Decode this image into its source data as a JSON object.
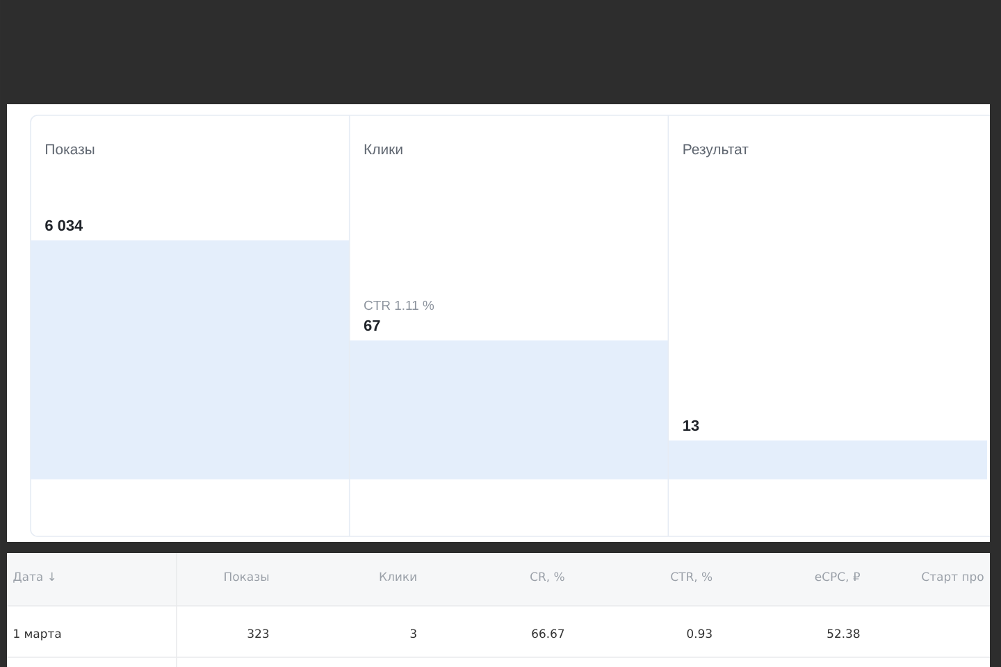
{
  "chart_data": [
    {
      "type": "other",
      "categories": [
        "Показы",
        "Клики",
        "Результат"
      ],
      "values": [
        6034,
        67,
        13
      ],
      "value_labels": [
        "6 034",
        "67",
        "13"
      ],
      "color": "#e4eefb",
      "annotations": [
        "CTR 1.11 %"
      ]
    },
    {
      "type": "other",
      "categories": [
        "Дата ↓",
        "Показы",
        "Клики",
        "CR, %",
        "CTR, %",
        "eCPC, ₽",
        "Старт про"
      ],
      "annotations": [
        "1 марта",
        "323",
        "3",
        "66.67",
        "0.93",
        "52.38"
      ]
    }
  ]
}
